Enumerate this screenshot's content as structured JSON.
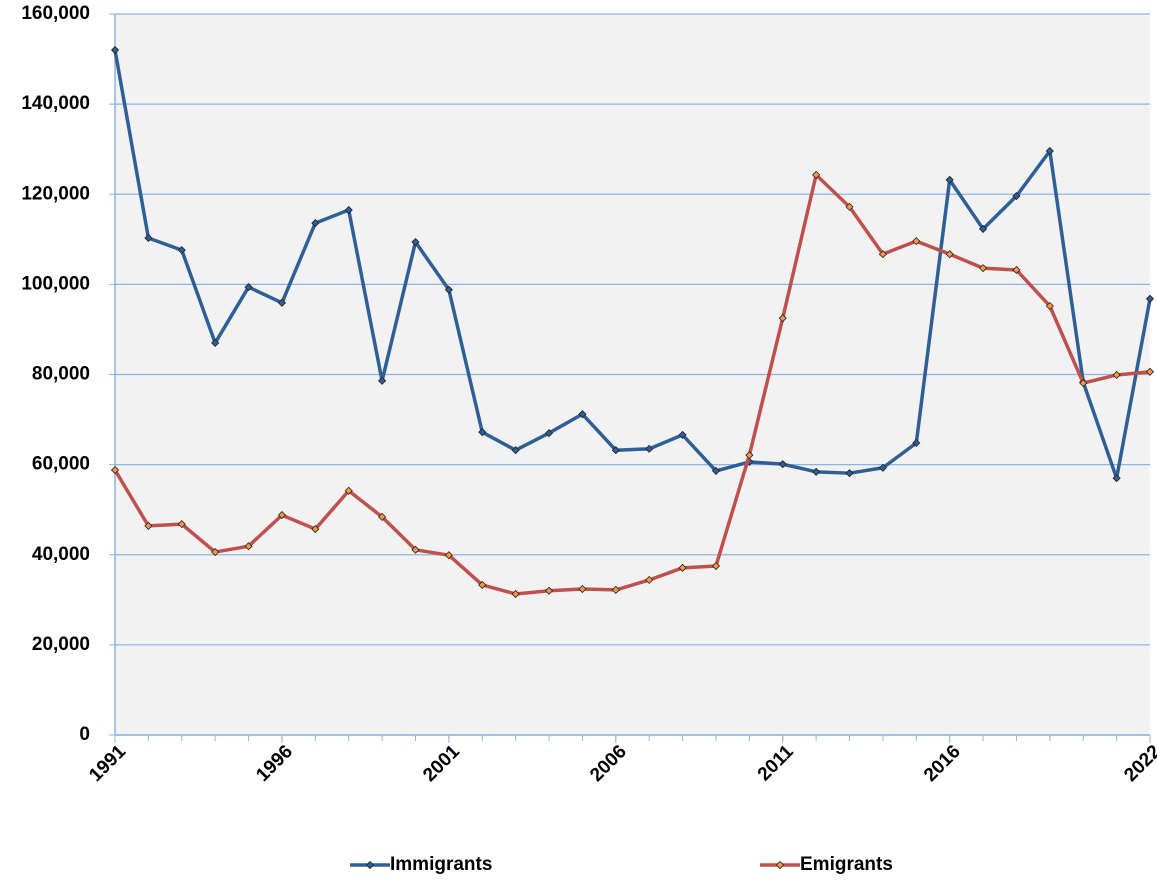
{
  "chart_data": {
    "type": "line",
    "x": [
      1991,
      1992,
      1993,
      1994,
      1995,
      1996,
      1997,
      1998,
      1999,
      2000,
      2001,
      2002,
      2003,
      2004,
      2005,
      2006,
      2007,
      2008,
      2009,
      2010,
      2011,
      2012,
      2013,
      2014,
      2015,
      2016,
      2017,
      2018,
      2019,
      2020,
      2021,
      2022
    ],
    "series": [
      {
        "name": "Immigrants",
        "color": "#2e5f96",
        "marker_color": "#2e5f96",
        "values": [
          152000,
          110300,
          107600,
          87000,
          99400,
          95900,
          113600,
          116500,
          78600,
          109400,
          98800,
          67200,
          63200,
          67000,
          71200,
          63200,
          63500,
          66600,
          58600,
          60600,
          60100,
          58400,
          58100,
          59300,
          64800,
          123200,
          112300,
          119600,
          129600,
          78300,
          57000,
          96800
        ]
      },
      {
        "name": "Emigrants",
        "color": "#c0504d",
        "marker_color": "#f79646",
        "values": [
          58800,
          46400,
          46800,
          40600,
          41900,
          48800,
          45700,
          54200,
          48400,
          41100,
          39900,
          33300,
          31300,
          32000,
          32400,
          32200,
          34400,
          37100,
          37500,
          62100,
          92500,
          124300,
          117200,
          106700,
          109600,
          106700,
          103600,
          103200,
          95200,
          78100,
          79900,
          80600
        ]
      }
    ],
    "xlim": [
      1991,
      2022
    ],
    "xticks": [
      1991,
      1996,
      2001,
      2006,
      2011,
      2016,
      2022
    ],
    "ylim": [
      0,
      160000
    ],
    "yticks": [
      0,
      {
        "value": 20000,
        "label": "20,000"
      },
      {
        "value": 40000,
        "label": "40,000"
      },
      {
        "value": 60000,
        "label": "60,000"
      },
      {
        "value": 80000,
        "label": "80,000"
      },
      {
        "value": 100000,
        "label": "100,000"
      },
      {
        "value": 120000,
        "label": "120,000"
      },
      {
        "value": 140000,
        "label": "140,000"
      },
      {
        "value": 160000,
        "label": "160,000"
      }
    ],
    "grid": true,
    "grid_color": "#8eb4e3",
    "plot_background": "#f2f2f2",
    "legend": "bottom"
  }
}
